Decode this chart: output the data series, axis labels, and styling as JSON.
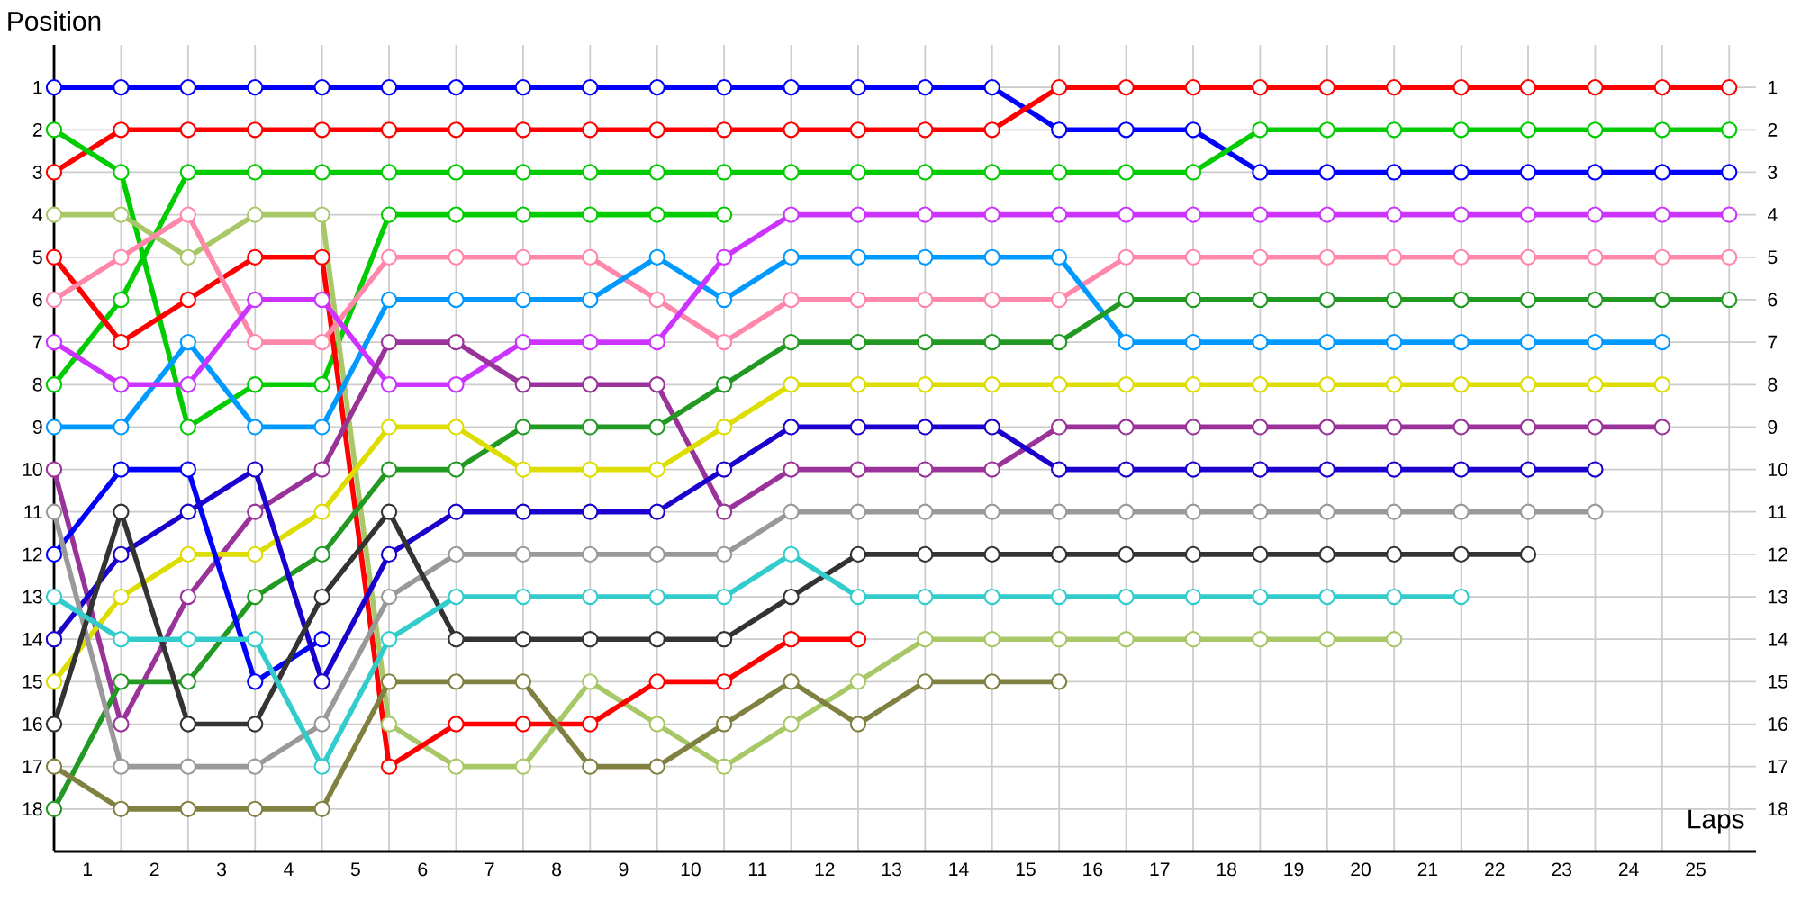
{
  "chart_data": {
    "type": "line",
    "xlabel": "Laps",
    "ylabel": "Position",
    "marker": "circle",
    "line_style": "solid",
    "grid": true,
    "x": [
      0,
      1,
      2,
      3,
      4,
      5,
      6,
      7,
      8,
      9,
      10,
      11,
      12,
      13,
      14,
      15,
      16,
      17,
      18,
      19,
      20,
      21,
      22,
      23,
      24,
      25
    ],
    "xlim": [
      0,
      25.4
    ],
    "ylim": [
      19,
      0
    ],
    "y2lim": [
      19,
      0
    ],
    "xticks": [
      {
        "value": 0.5,
        "label": "1"
      },
      {
        "value": 1.5,
        "label": "2"
      },
      {
        "value": 2.5,
        "label": "3"
      },
      {
        "value": 3.5,
        "label": "4"
      },
      {
        "value": 4.5,
        "label": "5"
      },
      {
        "value": 5.5,
        "label": "6"
      },
      {
        "value": 6.5,
        "label": "7"
      },
      {
        "value": 7.5,
        "label": "8"
      },
      {
        "value": 8.5,
        "label": "9"
      },
      {
        "value": 9.5,
        "label": "10"
      },
      {
        "value": 10.5,
        "label": "11"
      },
      {
        "value": 11.5,
        "label": "12"
      },
      {
        "value": 12.5,
        "label": "13"
      },
      {
        "value": 13.5,
        "label": "14"
      },
      {
        "value": 14.5,
        "label": "15"
      },
      {
        "value": 15.5,
        "label": "16"
      },
      {
        "value": 16.5,
        "label": "17"
      },
      {
        "value": 17.5,
        "label": "18"
      },
      {
        "value": 18.5,
        "label": "19"
      },
      {
        "value": 19.5,
        "label": "20"
      },
      {
        "value": 20.5,
        "label": "21"
      },
      {
        "value": 21.5,
        "label": "22"
      },
      {
        "value": 22.5,
        "label": "23"
      },
      {
        "value": 23.5,
        "label": "24"
      },
      {
        "value": 24.5,
        "label": "25"
      },
      {
        "value": 1,
        "label": null
      },
      {
        "value": 2,
        "label": null
      },
      {
        "value": 3,
        "label": null
      },
      {
        "value": 4,
        "label": null
      },
      {
        "value": 5,
        "label": null
      },
      {
        "value": 6,
        "label": null
      },
      {
        "value": 7,
        "label": null
      },
      {
        "value": 8,
        "label": null
      },
      {
        "value": 9,
        "label": null
      },
      {
        "value": 10,
        "label": null
      },
      {
        "value": 11,
        "label": null
      },
      {
        "value": 12,
        "label": null
      },
      {
        "value": 13,
        "label": null
      },
      {
        "value": 14,
        "label": null
      },
      {
        "value": 15,
        "label": null
      },
      {
        "value": 16,
        "label": null
      },
      {
        "value": 17,
        "label": null
      },
      {
        "value": 18,
        "label": null
      },
      {
        "value": 19,
        "label": null
      },
      {
        "value": 20,
        "label": null
      },
      {
        "value": 21,
        "label": null
      },
      {
        "value": 22,
        "label": null
      },
      {
        "value": 23,
        "label": null
      },
      {
        "value": 24,
        "label": null
      },
      {
        "value": 25,
        "label": null
      }
    ],
    "yticks": [
      1,
      2,
      3,
      4,
      5,
      6,
      7,
      8,
      9,
      10,
      11,
      12,
      13,
      14,
      15,
      16,
      17,
      18
    ],
    "y2ticks": [
      1,
      2,
      3,
      4,
      5,
      6,
      7,
      8,
      9,
      10,
      11,
      12,
      13,
      14,
      15,
      16,
      17,
      18
    ],
    "series": [
      {
        "color": "#0000ff",
        "values": [
          1,
          1,
          1,
          1,
          1,
          1,
          1,
          1,
          1,
          1,
          1,
          1,
          1,
          1,
          1,
          2,
          2,
          2,
          3,
          3,
          3,
          3,
          3,
          3,
          3,
          3
        ]
      },
      {
        "color": "#ff0000",
        "values": [
          3,
          2,
          2,
          2,
          2,
          2,
          2,
          2,
          2,
          2,
          2,
          2,
          2,
          2,
          2,
          1,
          1,
          1,
          1,
          1,
          1,
          1,
          1,
          1,
          1,
          1
        ]
      },
      {
        "color": "#00cc00",
        "values": [
          8,
          6,
          3,
          3,
          3,
          3,
          3,
          3,
          3,
          3,
          3,
          3,
          3,
          3,
          3,
          3,
          3,
          3,
          2,
          2,
          2,
          2,
          2,
          2,
          2,
          2
        ]
      },
      {
        "color": "#00cc00",
        "values": [
          2,
          3,
          9,
          8,
          8,
          4,
          4,
          4,
          4,
          4,
          4,
          null,
          null,
          null,
          null,
          null,
          null,
          null,
          null,
          null,
          null,
          null,
          null,
          null,
          null,
          null
        ]
      },
      {
        "color": "#a8c868",
        "values": [
          4,
          4,
          5,
          4,
          4,
          16,
          17,
          17,
          15,
          16,
          17,
          16,
          15,
          14,
          14,
          14,
          14,
          14,
          14,
          14,
          14,
          null,
          null,
          null,
          null,
          null
        ]
      },
      {
        "color": "#ff0000",
        "values": [
          5,
          7,
          6,
          5,
          5,
          17,
          16,
          16,
          16,
          15,
          15,
          14,
          14,
          null,
          null,
          null,
          null,
          null,
          null,
          null,
          null,
          null,
          null,
          null,
          null,
          null
        ]
      },
      {
        "color": "#ff88aa",
        "values": [
          6,
          5,
          4,
          7,
          7,
          5,
          5,
          5,
          5,
          6,
          7,
          6,
          6,
          6,
          6,
          6,
          5,
          5,
          5,
          5,
          5,
          5,
          5,
          5,
          5,
          5
        ]
      },
      {
        "color": "#0099ff",
        "values": [
          9,
          9,
          7,
          9,
          9,
          6,
          6,
          6,
          6,
          5,
          6,
          5,
          5,
          5,
          5,
          5,
          7,
          7,
          7,
          7,
          7,
          7,
          7,
          7,
          7,
          null
        ]
      },
      {
        "color": "#cc33ff",
        "values": [
          7,
          8,
          8,
          6,
          6,
          8,
          8,
          7,
          7,
          7,
          5,
          4,
          4,
          4,
          4,
          4,
          4,
          4,
          4,
          4,
          4,
          4,
          4,
          4,
          4,
          4
        ]
      },
      {
        "color": "#993399",
        "values": [
          10,
          16,
          13,
          11,
          10,
          7,
          7,
          8,
          8,
          8,
          11,
          10,
          10,
          10,
          10,
          9,
          9,
          9,
          9,
          9,
          9,
          9,
          9,
          9,
          9,
          null
        ]
      },
      {
        "color": "#229922",
        "values": [
          18,
          15,
          15,
          13,
          12,
          10,
          10,
          9,
          9,
          9,
          8,
          7,
          7,
          7,
          7,
          7,
          6,
          6,
          6,
          6,
          6,
          6,
          6,
          6,
          6,
          6
        ]
      },
      {
        "color": "#dddd00",
        "values": [
          15,
          13,
          12,
          12,
          11,
          9,
          9,
          10,
          10,
          10,
          9,
          8,
          8,
          8,
          8,
          8,
          8,
          8,
          8,
          8,
          8,
          8,
          8,
          8,
          8,
          null
        ]
      },
      {
        "color": "#0000ff",
        "values": [
          12,
          10,
          10,
          15,
          14,
          null,
          null,
          null,
          null,
          null,
          null,
          null,
          null,
          null,
          null,
          null,
          null,
          null,
          null,
          null,
          null,
          null,
          null,
          null,
          null,
          null
        ]
      },
      {
        "color": "#1a00cc",
        "values": [
          14,
          12,
          11,
          10,
          15,
          12,
          11,
          11,
          11,
          11,
          10,
          9,
          9,
          9,
          9,
          10,
          10,
          10,
          10,
          10,
          10,
          10,
          10,
          10,
          null,
          null
        ]
      },
      {
        "color": "#999999",
        "values": [
          11,
          17,
          17,
          17,
          16,
          13,
          12,
          12,
          12,
          12,
          12,
          11,
          11,
          11,
          11,
          11,
          11,
          11,
          11,
          11,
          11,
          11,
          11,
          11,
          null,
          null
        ]
      },
      {
        "color": "#333333",
        "values": [
          16,
          11,
          16,
          16,
          13,
          11,
          14,
          14,
          14,
          14,
          14,
          13,
          12,
          12,
          12,
          12,
          12,
          12,
          12,
          12,
          12,
          12,
          12,
          null,
          null,
          null
        ]
      },
      {
        "color": "#33cccc",
        "values": [
          13,
          14,
          14,
          14,
          17,
          14,
          13,
          13,
          13,
          13,
          13,
          12,
          13,
          13,
          13,
          13,
          13,
          13,
          13,
          13,
          13,
          13,
          null,
          null,
          null,
          null
        ]
      },
      {
        "color": "#808040",
        "values": [
          17,
          18,
          18,
          18,
          18,
          15,
          15,
          15,
          17,
          17,
          16,
          15,
          16,
          15,
          15,
          15,
          null,
          null,
          null,
          null,
          null,
          null,
          null,
          null,
          null,
          null
        ]
      }
    ]
  }
}
